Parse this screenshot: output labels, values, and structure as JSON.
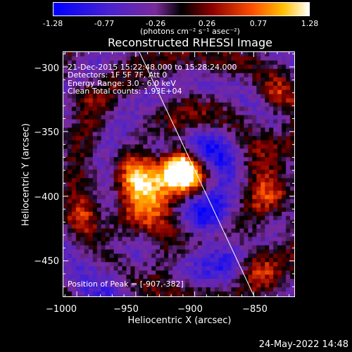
{
  "colorbar": {
    "ticks": [
      "-1.28",
      "-0.77",
      "-0.26",
      "0.26",
      "0.77",
      "1.28"
    ],
    "units": "(photons cm⁻² s⁻¹ asec⁻²)"
  },
  "title": "Reconstructed RHESSI Image",
  "info": {
    "time": "21-Dec-2015 15:22:48.000 to 15:28:24.000",
    "detectors": "Detectors: 1F 5F 7F, Att 0",
    "energy": "Energy Range: 3.0 - 6.0 keV",
    "clean": "Clean     Total counts: 1.93E+04"
  },
  "peak": "Position of Peak = [-907,-382]",
  "axes": {
    "xlabel": "Heliocentric X (arcsec)",
    "ylabel": "Heliocentric Y (arcsec)",
    "xticks": [
      "−1000",
      "−950",
      "−900",
      "−850"
    ],
    "yticks": [
      "−300",
      "−350",
      "−400",
      "−450"
    ],
    "xrange": [
      -1012,
      -815
    ],
    "yrange": [
      -288,
      -478
    ]
  },
  "footer_date": "24-May-2022 14:48",
  "colors": {
    "bg": "#000000",
    "frame": "#ffffff"
  }
}
